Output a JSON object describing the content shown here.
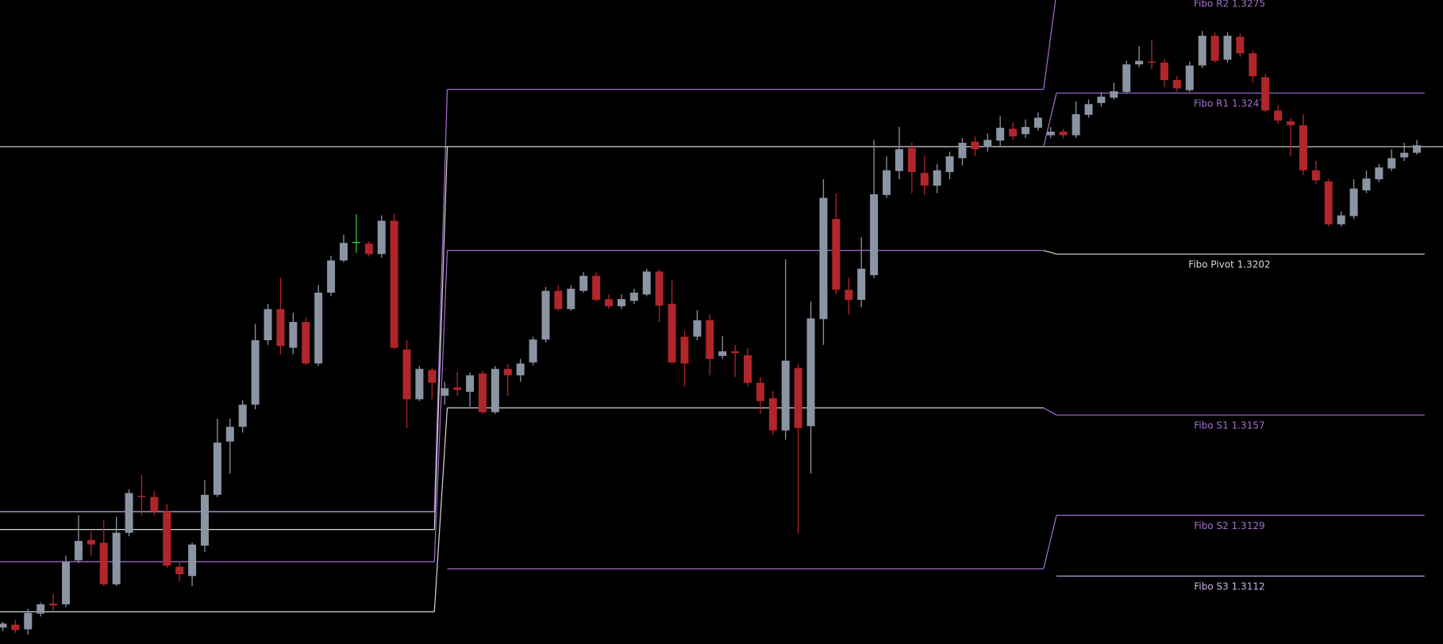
{
  "chart_data": {
    "type": "candlestick",
    "ylim": [
      1.3093,
      1.3273
    ],
    "up_color": "#8a94a3",
    "down_color": "#b0262b",
    "doji_color": "#2fbf3a",
    "current_price": 1.3232,
    "current_price_color": "#d8d8d8",
    "candles": [
      [
        1.30976,
        1.30992,
        1.30966,
        1.30987
      ],
      [
        1.30984,
        1.30997,
        1.30961,
        1.30969
      ],
      [
        1.30971,
        1.31028,
        1.30956,
        1.31017
      ],
      [
        1.31015,
        1.31046,
        1.31007,
        1.31041
      ],
      [
        1.31043,
        1.31069,
        1.31023,
        1.31038
      ],
      [
        1.31041,
        1.31177,
        1.31033,
        1.31159
      ],
      [
        1.31164,
        1.3129,
        1.31156,
        1.31218
      ],
      [
        1.31221,
        1.31244,
        1.31177,
        1.31208
      ],
      [
        1.31213,
        1.31275,
        1.31092,
        1.31097
      ],
      [
        1.31097,
        1.31285,
        1.31092,
        1.31241
      ],
      [
        1.31241,
        1.31362,
        1.31231,
        1.31352
      ],
      [
        1.31344,
        1.31403,
        1.3129,
        1.31341
      ],
      [
        1.31341,
        1.31357,
        1.3129,
        1.313
      ],
      [
        1.313,
        1.31321,
        1.31143,
        1.31149
      ],
      [
        1.31146,
        1.31161,
        1.31105,
        1.31125
      ],
      [
        1.3112,
        1.31213,
        1.31092,
        1.31208
      ],
      [
        1.31205,
        1.31388,
        1.31187,
        1.31347
      ],
      [
        1.31347,
        1.3156,
        1.31341,
        1.31493
      ],
      [
        1.31496,
        1.3156,
        1.31406,
        1.31537
      ],
      [
        1.31537,
        1.31611,
        1.31521,
        1.31599
      ],
      [
        1.31599,
        1.31825,
        1.31586,
        1.31779
      ],
      [
        1.31779,
        1.31881,
        1.31766,
        1.31866
      ],
      [
        1.31866,
        1.31953,
        1.3174,
        1.31763
      ],
      [
        1.31758,
        1.31856,
        1.3174,
        1.3183
      ],
      [
        1.3183,
        1.31843,
        1.31709,
        1.31714
      ],
      [
        1.31714,
        1.31933,
        1.31707,
        1.31912
      ],
      [
        1.31912,
        1.32015,
        1.31902,
        1.32002
      ],
      [
        1.32002,
        1.32074,
        1.31997,
        1.32051
      ],
      [
        1.32054,
        1.32131,
        1.32023,
        1.32054
      ],
      [
        1.32049,
        1.32056,
        1.32013,
        1.3202
      ],
      [
        1.3202,
        1.32128,
        1.3201,
        1.32113
      ],
      [
        1.32113,
        1.32133,
        1.31753,
        1.31758
      ],
      [
        1.31753,
        1.31779,
        1.31534,
        1.31614
      ],
      [
        1.31614,
        1.31707,
        1.31609,
        1.31699
      ],
      [
        1.31696,
        1.31701,
        1.31614,
        1.3166
      ],
      [
        1.31624,
        1.31663,
        1.31599,
        1.31645
      ],
      [
        1.31647,
        1.31691,
        1.31624,
        1.3164
      ],
      [
        1.31635,
        1.31689,
        1.31593,
        1.31681
      ],
      [
        1.31686,
        1.31694,
        1.31573,
        1.31578
      ],
      [
        1.31578,
        1.31707,
        1.31573,
        1.31699
      ],
      [
        1.31699,
        1.31712,
        1.31624,
        1.31681
      ],
      [
        1.31681,
        1.31727,
        1.31663,
        1.31714
      ],
      [
        1.31717,
        1.31789,
        1.31709,
        1.31781
      ],
      [
        1.31781,
        1.31928,
        1.31773,
        1.31917
      ],
      [
        1.31917,
        1.31933,
        1.31861,
        1.31866
      ],
      [
        1.31866,
        1.31933,
        1.31861,
        1.31923
      ],
      [
        1.31917,
        1.31969,
        1.31912,
        1.31959
      ],
      [
        1.31959,
        1.31969,
        1.31887,
        1.31892
      ],
      [
        1.31894,
        1.31907,
        1.31866,
        1.31874
      ],
      [
        1.31874,
        1.31907,
        1.31866,
        1.31894
      ],
      [
        1.31889,
        1.31923,
        1.31881,
        1.31912
      ],
      [
        1.31907,
        1.31979,
        1.31902,
        1.31971
      ],
      [
        1.31971,
        1.31977,
        1.3183,
        1.31876
      ],
      [
        1.31881,
        1.31946,
        1.31712,
        1.31717
      ],
      [
        1.31789,
        1.31804,
        1.3165,
        1.31714
      ],
      [
        1.31789,
        1.31863,
        1.31779,
        1.31835
      ],
      [
        1.31835,
        1.31851,
        1.31681,
        1.31727
      ],
      [
        1.31735,
        1.31791,
        1.31727,
        1.31748
      ],
      [
        1.31748,
        1.31766,
        1.31676,
        1.31743
      ],
      [
        1.31737,
        1.31758,
        1.3165,
        1.3166
      ],
      [
        1.3166,
        1.31676,
        1.31573,
        1.31609
      ],
      [
        1.31617,
        1.31637,
        1.31514,
        1.31527
      ],
      [
        1.31527,
        1.32005,
        1.31501,
        1.31722
      ],
      [
        1.31701,
        1.31714,
        1.31239,
        1.31534
      ],
      [
        1.31539,
        1.31887,
        1.31406,
        1.3184
      ],
      [
        1.31838,
        1.32229,
        1.31766,
        1.32177
      ],
      [
        1.32118,
        1.3219,
        1.31907,
        1.3192
      ],
      [
        1.3192,
        1.31953,
        1.31851,
        1.31892
      ],
      [
        1.31892,
        1.32067,
        1.31871,
        1.31979
      ],
      [
        1.31961,
        1.32339,
        1.31953,
        1.32187
      ],
      [
        1.32185,
        1.32293,
        1.32177,
        1.32254
      ],
      [
        1.32252,
        1.32375,
        1.32229,
        1.32313
      ],
      [
        1.32316,
        1.32331,
        1.3219,
        1.32249
      ],
      [
        1.32247,
        1.32293,
        1.32185,
        1.32211
      ],
      [
        1.32211,
        1.32272,
        1.3219,
        1.32254
      ],
      [
        1.32249,
        1.32306,
        1.32229,
        1.32293
      ],
      [
        1.32288,
        1.32344,
        1.32267,
        1.32331
      ],
      [
        1.32334,
        1.32349,
        1.32293,
        1.32313
      ],
      [
        1.32319,
        1.32357,
        1.32306,
        1.32339
      ],
      [
        1.32337,
        1.32406,
        1.32319,
        1.32373
      ],
      [
        1.3237,
        1.32388,
        1.32339,
        1.32349
      ],
      [
        1.32355,
        1.32396,
        1.32344,
        1.32375
      ],
      [
        1.32373,
        1.32416,
        1.32365,
        1.32401
      ],
      [
        1.32352,
        1.32375,
        1.32344,
        1.32362
      ],
      [
        1.32362,
        1.3237,
        1.32344,
        1.32352
      ],
      [
        1.32352,
        1.32447,
        1.32344,
        1.32411
      ],
      [
        1.32409,
        1.32452,
        1.32401,
        1.32439
      ],
      [
        1.32442,
        1.32473,
        1.32432,
        1.3246
      ],
      [
        1.32457,
        1.32499,
        1.32452,
        1.32475
      ],
      [
        1.32473,
        1.3256,
        1.32468,
        1.3255
      ],
      [
        1.3255,
        1.32601,
        1.32542,
        1.3256
      ],
      [
        1.32558,
        1.32619,
        1.32537,
        1.32555
      ],
      [
        1.32555,
        1.32565,
        1.32486,
        1.32506
      ],
      [
        1.32506,
        1.32517,
        1.32473,
        1.32483
      ],
      [
        1.32478,
        1.32558,
        1.32473,
        1.32547
      ],
      [
        1.32547,
        1.32643,
        1.3254,
        1.3263
      ],
      [
        1.3263,
        1.3264,
        1.32555,
        1.3256
      ],
      [
        1.32563,
        1.3264,
        1.32555,
        1.3263
      ],
      [
        1.32627,
        1.32637,
        1.32571,
        1.32581
      ],
      [
        1.32581,
        1.32589,
        1.32499,
        1.32517
      ],
      [
        1.32514,
        1.32524,
        1.32416,
        1.32421
      ],
      [
        1.32421,
        1.32437,
        1.32383,
        1.32393
      ],
      [
        1.32391,
        1.32401,
        1.32293,
        1.3238
      ],
      [
        1.3238,
        1.32411,
        1.32241,
        1.32254
      ],
      [
        1.32254,
        1.3228,
        1.32216,
        1.32226
      ],
      [
        1.32223,
        1.32229,
        1.32097,
        1.32103
      ],
      [
        1.32103,
        1.32139,
        1.32097,
        1.32128
      ],
      [
        1.32126,
        1.32229,
        1.32118,
        1.32203
      ],
      [
        1.32198,
        1.32254,
        1.3219,
        1.32231
      ],
      [
        1.32229,
        1.32272,
        1.32221,
        1.32262
      ],
      [
        1.32259,
        1.32313,
        1.32252,
        1.32288
      ],
      [
        1.3229,
        1.32331,
        1.3228,
        1.32303
      ],
      [
        1.32303,
        1.32339,
        1.32298,
        1.32324
      ]
    ],
    "pivot_periods": [
      [
        {
          "value": 1.313,
          "color": "#c8b4e6"
        },
        {
          "value": 1.3125,
          "color": "#d8d8d8"
        },
        {
          "value": 1.3116,
          "color": "#a56fd0"
        },
        {
          "value": 1.3102,
          "color": "#d8d8d8"
        }
      ],
      [
        {
          "value": 1.3248,
          "color": "#a56fd0"
        },
        {
          "value": 1.3232,
          "color": "#d8d8d8"
        },
        {
          "value": 1.3203,
          "color": "#a56fd0"
        },
        {
          "value": 1.3159,
          "color": "#d8d8d8"
        },
        {
          "value": 1.3114,
          "color": "#a56fd0"
        }
      ],
      [
        {
          "value": 1.3275,
          "color": "#a56fd0",
          "label": "Fibo R2 1.3275"
        },
        {
          "value": 1.3247,
          "color": "#a56fd0",
          "label": "Fibo R1 1.3247"
        },
        {
          "value": 1.3202,
          "color": "#d8d8d8",
          "label": "Fibo Pivot 1.3202"
        },
        {
          "value": 1.3157,
          "color": "#a56fd0",
          "label": "Fibo S1 1.3157"
        },
        {
          "value": 1.3129,
          "color": "#a56fd0",
          "label": "Fibo S2 1.3129"
        },
        {
          "value": 1.3112,
          "color": "#c8b4e6",
          "label": "Fibo S3 1.3112"
        }
      ]
    ]
  }
}
